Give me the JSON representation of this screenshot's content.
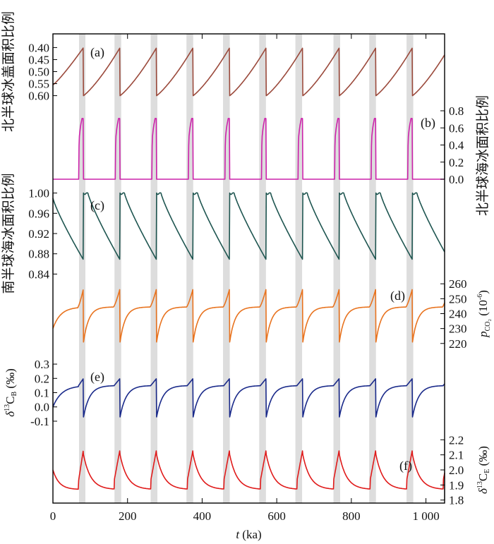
{
  "chart_data": {
    "type": "line",
    "x": {
      "label": "t (ka)",
      "label_var": "t",
      "label_unit": "(ka)",
      "range": [
        0,
        1050
      ],
      "ticks": [
        0,
        200,
        400,
        600,
        800,
        1000
      ],
      "tick_labels": [
        "0",
        "200",
        "400",
        "600",
        "800",
        "1 000"
      ]
    },
    "shaded_intervals": [
      [
        70,
        87
      ],
      [
        165,
        183
      ],
      [
        262,
        280
      ],
      [
        358,
        376
      ],
      [
        456,
        474
      ],
      [
        553,
        571
      ],
      [
        650,
        668
      ],
      [
        752,
        770
      ],
      [
        848,
        866
      ],
      [
        948,
        966
      ]
    ],
    "cycle": {
      "period": 98,
      "first_termination": 82
    },
    "panels": [
      {
        "id": "a",
        "label": "(a)",
        "ylabel": "北半球冰盖面积比例",
        "ylabel_side": "left",
        "y_ticks": [
          0.4,
          0.45,
          0.5,
          0.55,
          0.6
        ],
        "y_tick_labels": [
          "0.40",
          "0.45",
          "0.50",
          "0.55",
          "0.60"
        ],
        "y_inverted": true,
        "y_range": [
          0.39,
          0.61
        ],
        "start_value": 0.555,
        "peak_value": 0.4,
        "post_drop_value": 0.6,
        "series_color": "#9b4a3c"
      },
      {
        "id": "b",
        "label": "(b)",
        "ylabel": "北半球海冰面积比例",
        "ylabel_side": "right",
        "y_ticks": [
          0.0,
          0.2,
          0.4,
          0.6,
          0.8
        ],
        "y_tick_labels": [
          "0.0",
          "0.2",
          "0.4",
          "0.6",
          "0.8"
        ],
        "y_range": [
          0.0,
          0.8
        ],
        "baseline_value": 0.0,
        "pulse_value": 0.71,
        "series_color": "#cc22aa"
      },
      {
        "id": "c",
        "label": "(c)",
        "ylabel": "南半球海冰面积比例",
        "ylabel_side": "left",
        "y_ticks": [
          0.84,
          0.88,
          0.92,
          0.96,
          1.0
        ],
        "y_tick_labels": [
          "0.84",
          "0.88",
          "0.92",
          "0.96",
          "1.00"
        ],
        "y_range": [
          0.835,
          1.005
        ],
        "start_value": 0.99,
        "min_value": 0.868,
        "max_value": 1.0,
        "series_color": "#1e5550"
      },
      {
        "id": "d",
        "label": "(d)",
        "ylabel": "pCO2 (10^-6)",
        "ylabel_math": {
          "var": "p",
          "sub": "CO₂",
          "unit": "(10",
          "unit_sup": "-6",
          "unit_close": ")"
        },
        "ylabel_side": "right",
        "y_ticks": [
          220,
          230,
          240,
          250,
          260
        ],
        "y_tick_labels": [
          "220",
          "230",
          "240",
          "250",
          "260"
        ],
        "y_range": [
          218,
          262
        ],
        "start_value": 230,
        "plateau_value": 244.5,
        "peak_value": 257,
        "min_value": 221,
        "series_color": "#e8731f"
      },
      {
        "id": "e",
        "label": "(e)",
        "ylabel": "δ13CB (‰)",
        "ylabel_math": {
          "var": "δ",
          "sup": "13",
          "base": "C",
          "sub": "B",
          "unit": "(‰)"
        },
        "ylabel_side": "left",
        "y_ticks": [
          -0.1,
          0.0,
          0.1,
          0.2,
          0.3
        ],
        "y_tick_labels": [
          "-0.1",
          "0.0",
          "0.1",
          "0.2",
          "0.3"
        ],
        "y_range": [
          -0.12,
          0.32
        ],
        "start_value": 0.0,
        "plateau_value": 0.15,
        "peak_value": 0.2,
        "min_value": -0.07,
        "series_color": "#1a2a8a"
      },
      {
        "id": "f",
        "label": "(f)",
        "ylabel": "δ13CE (‰)",
        "ylabel_math": {
          "var": "δ",
          "sup": "13",
          "base": "C",
          "sub": "E",
          "unit": "(‰)"
        },
        "ylabel_side": "right",
        "y_ticks": [
          1.8,
          1.9,
          2.0,
          2.1,
          2.2
        ],
        "y_tick_labels": [
          "1.8",
          "1.9",
          "2.0",
          "2.1",
          "2.2"
        ],
        "y_range": [
          1.78,
          2.22
        ],
        "start_value": 2.0,
        "trough_value": 1.87,
        "peak_value": 2.14,
        "series_color": "#e01a1a"
      }
    ]
  }
}
